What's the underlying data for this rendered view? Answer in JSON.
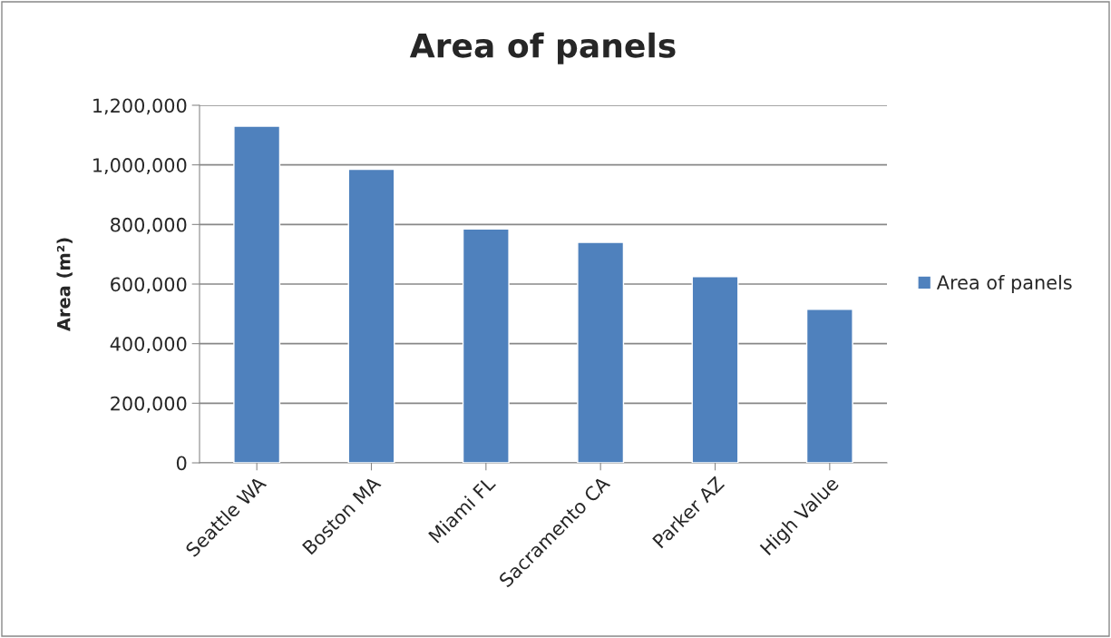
{
  "chart_data": {
    "type": "bar",
    "title": "Area of panels",
    "ylabel": "Area (m²)",
    "categories": [
      "Seattle WA",
      "Boston MA",
      "Miami FL",
      "Sacramento CA",
      "Parker AZ",
      "High Value"
    ],
    "series": [
      {
        "name": "Area of panels",
        "color": "#4f81bd",
        "values": [
          1130000,
          985000,
          785000,
          740000,
          625000,
          515000
        ]
      }
    ],
    "ylim": [
      0,
      1200000
    ],
    "yticks": [
      {
        "value": 0,
        "label": "0"
      },
      {
        "value": 200000,
        "label": "200,000"
      },
      {
        "value": 400000,
        "label": "400,000"
      },
      {
        "value": 600000,
        "label": "600,000"
      },
      {
        "value": 800000,
        "label": "800,000"
      },
      {
        "value": 1000000,
        "label": "1,000,000"
      },
      {
        "value": 1200000,
        "label": "1,200,000"
      }
    ],
    "grid": "y",
    "legend": "right"
  }
}
